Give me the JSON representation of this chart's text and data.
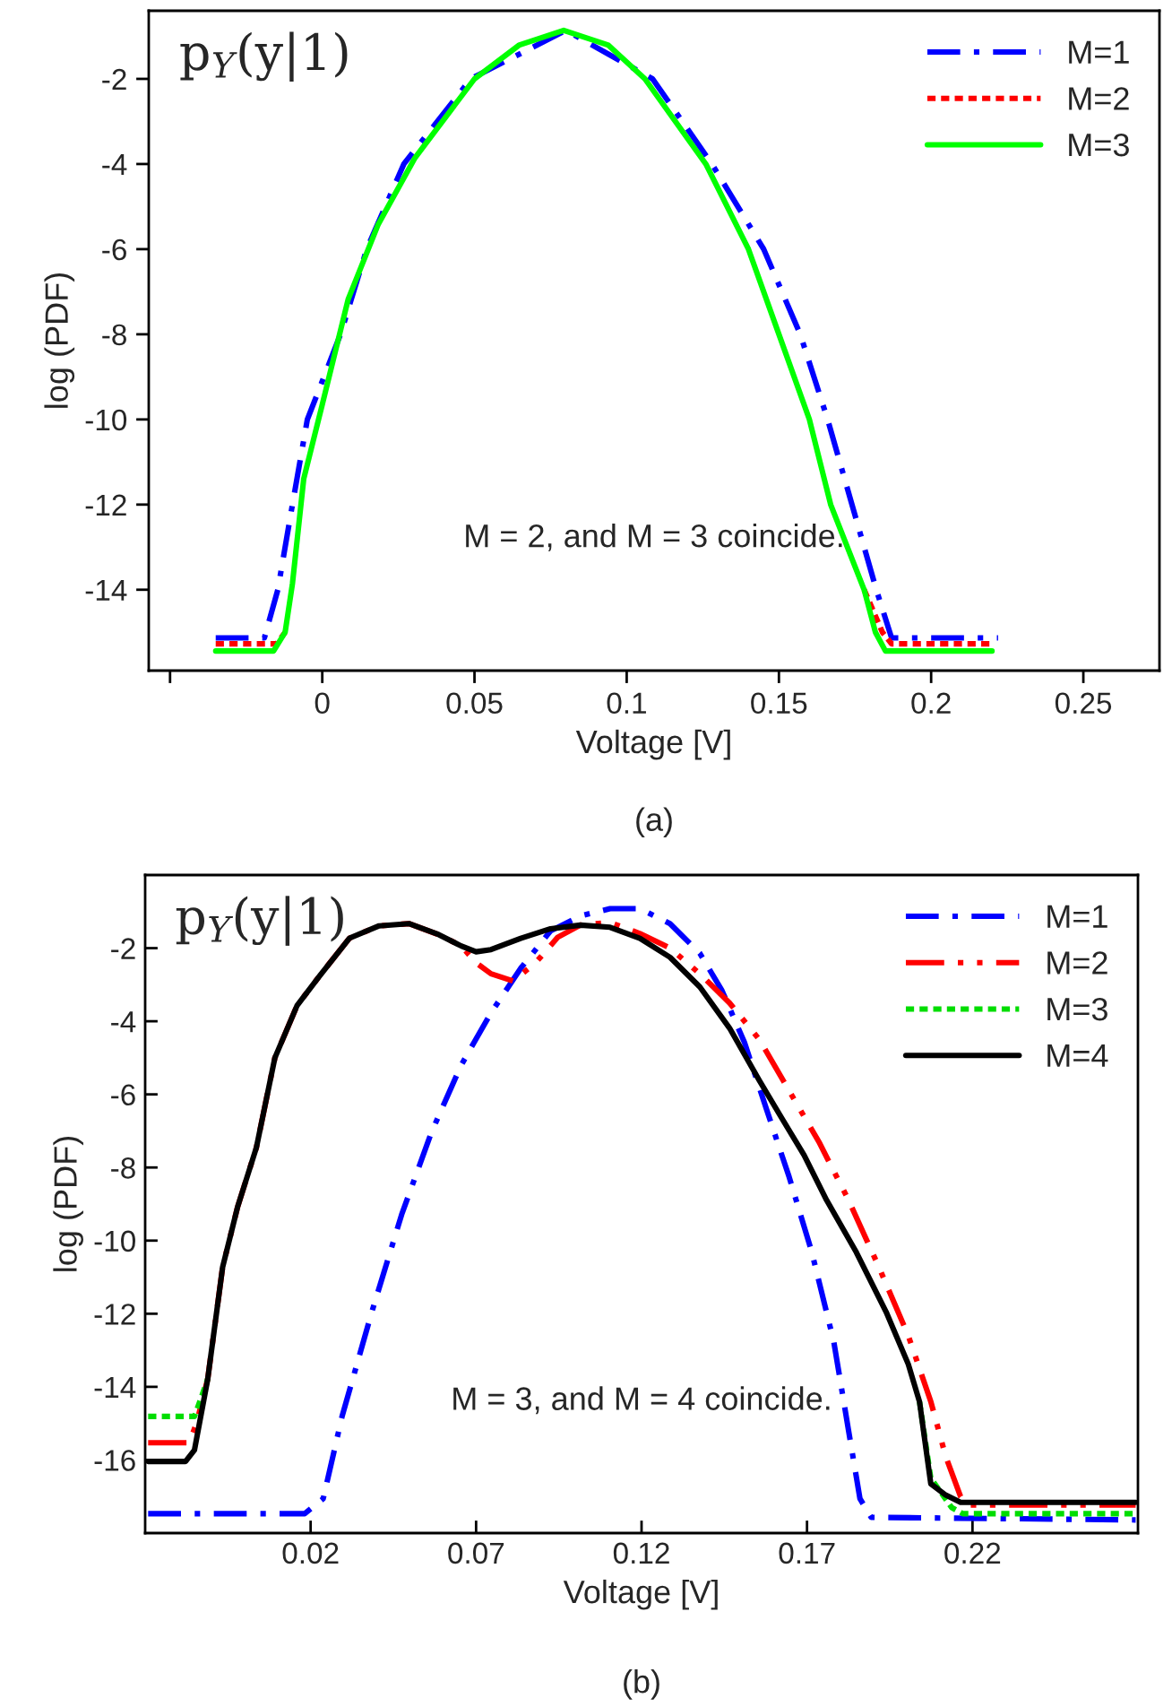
{
  "chart_data": [
    {
      "type": "line",
      "xlabel": "Voltage [V]",
      "ylabel": "log (PDF)",
      "xlim": [
        -0.057,
        0.275
      ],
      "ylim": [
        -15.9,
        -0.4
      ],
      "xticks": [
        {
          "value": -0.05,
          "label": null
        },
        0,
        0.05,
        0.1,
        0.15,
        0.2,
        0.25
      ],
      "yticks": [
        -14,
        -12,
        -10,
        -8,
        -6,
        -4,
        -2
      ],
      "grid": false,
      "legend": "top right",
      "annotations": [
        "p$_{Y}$(y|1)",
        "M = 2, and M = 3 coincide.",
        "(a)"
      ],
      "series": [
        {
          "name": "M=1",
          "color": "#0000ff",
          "line_style": "dashdot",
          "x": [
            -0.035,
            -0.019,
            -0.0146,
            -0.0098,
            -0.0049,
            0.006,
            0.0146,
            0.0268,
            0.0488,
            0.08,
            0.1085,
            0.128,
            0.145,
            0.157,
            0.166,
            0.174,
            0.182,
            0.187,
            0.222
          ],
          "values": [
            -15.13,
            -15.13,
            -14,
            -12,
            -10,
            -8,
            -6,
            -4,
            -2,
            -0.86,
            -2,
            -4,
            -6,
            -8,
            -10,
            -12,
            -14,
            -15.13,
            -15.13
          ]
        },
        {
          "name": "M=2",
          "color": "#ff0000",
          "line_style": "dotted",
          "x": [
            -0.035,
            -0.015,
            -0.0122,
            -0.0098,
            -0.0061,
            0,
            0.0085,
            0.0183,
            0.0305,
            0.05,
            0.0646,
            0.0793,
            0.094,
            0.106,
            0.126,
            0.14,
            0.15,
            0.16,
            0.167,
            0.178,
            0.184,
            0.187,
            0.22
          ],
          "values": [
            -15.27,
            -15.27,
            -15.0,
            null,
            null,
            null,
            null,
            null,
            null,
            null,
            null,
            null,
            null,
            null,
            null,
            null,
            null,
            null,
            null,
            -14,
            -15.0,
            -15.27,
            -15.27
          ]
        },
        {
          "name": "M=3",
          "color": "#00ff00",
          "line_style": "solid",
          "x": [
            -0.035,
            -0.016,
            -0.0122,
            -0.0098,
            -0.0061,
            0,
            0.0085,
            0.0183,
            0.0305,
            0.05,
            0.0646,
            0.0793,
            0.094,
            0.106,
            0.126,
            0.14,
            0.15,
            0.16,
            0.167,
            0.178,
            0.1817,
            0.185,
            0.22
          ],
          "values": [
            -15.44,
            -15.44,
            -15.0,
            -13.86,
            -11.4,
            -9.65,
            -7.18,
            -5.43,
            -3.85,
            -2,
            -1.21,
            -0.86,
            -1.21,
            -2,
            -4,
            -6,
            -8,
            -10,
            -12,
            -14,
            -15.0,
            -15.44,
            -15.44
          ]
        }
      ]
    },
    {
      "type": "line",
      "xlabel": "Voltage [V]",
      "ylabel": "log (PDF)",
      "xlim": [
        -0.03,
        0.27
      ],
      "ylim": [
        -18,
        0
      ],
      "xticks": [
        0.02,
        0.07,
        0.12,
        0.17,
        0.22
      ],
      "yticks": [
        -16,
        -14,
        -12,
        -10,
        -8,
        -6,
        -4,
        -2
      ],
      "grid": false,
      "legend": "top right",
      "annotations": [
        "p$_{Y}$(y|1)",
        "M = 3, and M = 4 coincide.",
        "(b)"
      ],
      "series": [
        {
          "name": "M=1",
          "color": "#0000ff",
          "line_style": "dashdot",
          "x": [
            -0.0291,
            0.0182,
            0.0238,
            0.0295,
            0.0385,
            0.0475,
            0.0565,
            0.0655,
            0.0745,
            0.0835,
            0.0925,
            0.1015,
            0.1105,
            0.1195,
            0.1286,
            0.1376,
            0.1443,
            0.1511,
            0.1578,
            0.1646,
            0.1714,
            0.1781,
            0.1826,
            0.186,
            0.1894,
            0.2693
          ],
          "values": [
            -17.47,
            -17.47,
            -17.06,
            -14.81,
            -11.95,
            -9.29,
            -7.04,
            -5.2,
            -3.77,
            -2.55,
            -1.53,
            -1.12,
            -0.92,
            -0.92,
            -1.33,
            -2.14,
            -3.16,
            -4.58,
            -6.42,
            -8.26,
            -10.3,
            -12.77,
            -15.22,
            -17.06,
            -17.57,
            -17.64
          ]
        },
        {
          "name": "M=2",
          "color": "#ff0000",
          "line_style": "dashdotdot",
          "x": [
            -0.0291,
            -0.0167,
            -0.0145,
            -0.0111,
            -0.0066,
            -0.0021,
            0.0036,
            0.0092,
            0.0159,
            0.0227,
            0.0317,
            0.0407,
            0.0497,
            0.0587,
            0.0655,
            0.07,
            0.0745,
            0.0812,
            0.088,
            0.0947,
            0.1015,
            0.1105,
            0.1195,
            0.1286,
            0.1376,
            0.1466,
            0.1556,
            0.1646,
            0.1736,
            0.1826,
            0.1916,
            0.2006,
            0.2074,
            0.2119,
            0.2164,
            0.2186,
            0.2693
          ],
          "values": [
            -15.53,
            -15.53,
            -15.0,
            -13.79,
            -10.73,
            -9.09,
            -7.46,
            -5.0,
            -3.57,
            -2.76,
            -1.73,
            -1.39,
            -1.33,
            -1.63,
            -1.94,
            -2.4,
            -2.7,
            -2.9,
            -2.4,
            -1.7,
            -1.37,
            -1.3,
            -1.6,
            -2.0,
            -2.7,
            -3.5,
            -4.5,
            -5.9,
            -7.3,
            -8.9,
            -10.7,
            -12.6,
            -14.4,
            -15.9,
            -17.0,
            -17.23,
            -17.23
          ]
        },
        {
          "name": "M=3",
          "color": "#00dd00",
          "line_style": "dotted",
          "x": [
            -0.0291,
            -0.0151,
            -0.0111,
            -0.0066,
            -0.0021,
            0.0036,
            0.0092,
            0.0159,
            0.0227,
            0.0317,
            0.0407,
            0.0497,
            0.0587,
            0.0655,
            0.07,
            0.0745,
            0.0835,
            0.0925,
            0.1015,
            0.1105,
            0.1195,
            0.1286,
            0.1376,
            0.1466,
            0.1556,
            0.1623,
            0.1691,
            0.1759,
            0.1849,
            0.1939,
            0.2006,
            0.204,
            0.2074,
            0.2137,
            0.2171,
            0.2693
          ],
          "values": [
            -14.81,
            -14.81,
            -13.79,
            null,
            null,
            null,
            null,
            null,
            null,
            null,
            null,
            null,
            null,
            null,
            null,
            null,
            null,
            null,
            null,
            null,
            null,
            null,
            null,
            null,
            null,
            null,
            null,
            null,
            null,
            null,
            null,
            -14.41,
            -16.5,
            -17.3,
            -17.47,
            -17.47
          ]
        },
        {
          "name": "M=4",
          "color": "#000000",
          "line_style": "solid",
          "x": [
            -0.0291,
            -0.0178,
            -0.0151,
            -0.0111,
            -0.0066,
            -0.0021,
            0.0036,
            0.0092,
            0.0159,
            0.0227,
            0.0317,
            0.0407,
            0.0497,
            0.0587,
            0.0655,
            0.07,
            0.0745,
            0.0835,
            0.0925,
            0.1015,
            0.1105,
            0.1195,
            0.1286,
            0.1376,
            0.1466,
            0.1556,
            0.1623,
            0.1691,
            0.1759,
            0.1849,
            0.1939,
            0.2006,
            0.204,
            0.2074,
            0.2119,
            0.2164,
            0.2693
          ],
          "values": [
            -16.04,
            -16.04,
            -15.73,
            -13.79,
            -10.73,
            -9.09,
            -7.46,
            -5.0,
            -3.57,
            -2.76,
            -1.73,
            -1.39,
            -1.33,
            -1.63,
            -1.94,
            -2.1,
            -2.04,
            -1.73,
            -1.47,
            -1.37,
            -1.43,
            -1.73,
            -2.25,
            -3.06,
            -4.19,
            -5.62,
            -6.64,
            -7.66,
            -8.89,
            -10.32,
            -11.95,
            -13.38,
            -14.41,
            -16.65,
            -16.96,
            -17.16,
            -17.16
          ]
        }
      ]
    }
  ]
}
